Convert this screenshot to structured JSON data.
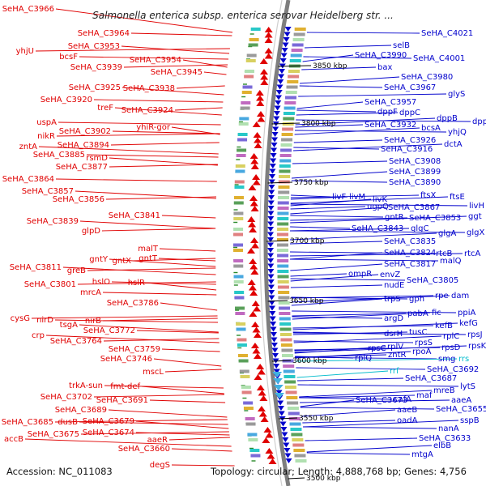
{
  "title": "Salmonella enterica subsp. enterica serovar Heidelberg str. ...",
  "accession": "Accession: NC_011083",
  "summary": "Topology: circular; Length: 4,888,768 bp; Genes: 4,756",
  "colors": {
    "left_strand": "#e00000",
    "right_strand": "#0000cc",
    "rna": "#00bbcc",
    "backbone": "#888888"
  },
  "kbp_marks": [
    "3850 kbp",
    "3800 kbp",
    "3750 kbp",
    "3700 kbp",
    "3650 kbp",
    "3600 kbp",
    "3550 kbp",
    "3500 kbp"
  ],
  "left_genes": [
    "SeHA_C3966",
    "SeHA_C3964",
    "SeHA_C3953",
    "yhjU",
    "bcsF",
    "SeHA_C3954",
    "SeHA_C3939",
    "SeHA_C3945",
    "SeHA_C3925",
    "SeHA_C3938",
    "SeHA_C3920",
    "treF",
    "SeHA_C3924",
    "uspA",
    "yhiR-gor",
    "nikR",
    "SeHA_C3902",
    "zntA",
    "SeHA_C3894",
    "SeHA_C3885",
    "rsmD",
    "SeHA_C3877",
    "SeHA_C3864",
    "SeHA_C3857",
    "SeHA_C3856",
    "SeHA_C3841",
    "SeHA_C3839",
    "glpD",
    "malT",
    "gntY",
    "gntX",
    "gntT",
    "SeHA_C3811",
    "greB",
    "hslO",
    "hslR",
    "SeHA_C3801",
    "mrcA",
    "SeHA_C3786",
    "cysG",
    "nirD",
    "tsgA",
    "nirB",
    "SeHA_C3772",
    "crp",
    "SeHA_C3764",
    "SeHA_C3759",
    "SeHA_C3746",
    "mscL",
    "trkA-sun",
    "fmt-def",
    "SeHA_C3702",
    "SeHA_C3691",
    "SeHA_C3689",
    "SeHA_C3685",
    "dusB",
    "SeHA_C3679",
    "SeHA_C3675",
    "SeHA_C3674",
    "accB",
    "aaeR",
    "SeHA_C3660",
    "degS"
  ],
  "right_genes": [
    "SeHA_C4021",
    "selB",
    "SeHA_C3990",
    "SeHA_C4001",
    "bax",
    "SeHA_C3980",
    "SeHA_C3967",
    "glyS",
    "SeHA_C3957",
    "dppF",
    "dppC",
    "dppB",
    "dppA",
    "SeHA_C3932",
    "bcsA",
    "yhjQ",
    "SeHA_C3926",
    "dctA",
    "SeHA_C3916",
    "SeHA_C3908",
    "SeHA_C3899",
    "SeHA_C3890",
    "ftsX",
    "ftsE",
    "livF",
    "livM",
    "livK",
    "livH",
    "ugpQ",
    "SeHA_C3867",
    "gntR",
    "SeHA_C3853",
    "ggt",
    "SeHA_C3843",
    "glgC",
    "glgA",
    "glgX",
    "SeHA_C3835",
    "SeHA_C3824",
    "rtcB",
    "rtcA",
    "SeHA_C3817",
    "malQ",
    "ompR",
    "envZ",
    "SeHA_C3805",
    "nudE",
    "trpS",
    "gph",
    "rpe",
    "dam",
    "argD",
    "pabA",
    "fic",
    "ppiA",
    "kefB",
    "kefG",
    "dsrH",
    "tusC",
    "rplC",
    "rpsJ",
    "rpsC",
    "rplV",
    "rpsS",
    "rpsD",
    "rpsK",
    "rplQ",
    "zntR",
    "rpoA",
    "smg",
    "rrs",
    "rrf",
    "SeHA_C3692",
    "SeHA_C3687",
    "mreB",
    "lytS",
    "aaeA",
    "SeHA_C3673",
    "cafA",
    "maf",
    "aaeB",
    "SeHA_C3655",
    "oadA",
    "sspB",
    "nanA",
    "SeHA_C3633",
    "elbB",
    "mtgA"
  ]
}
